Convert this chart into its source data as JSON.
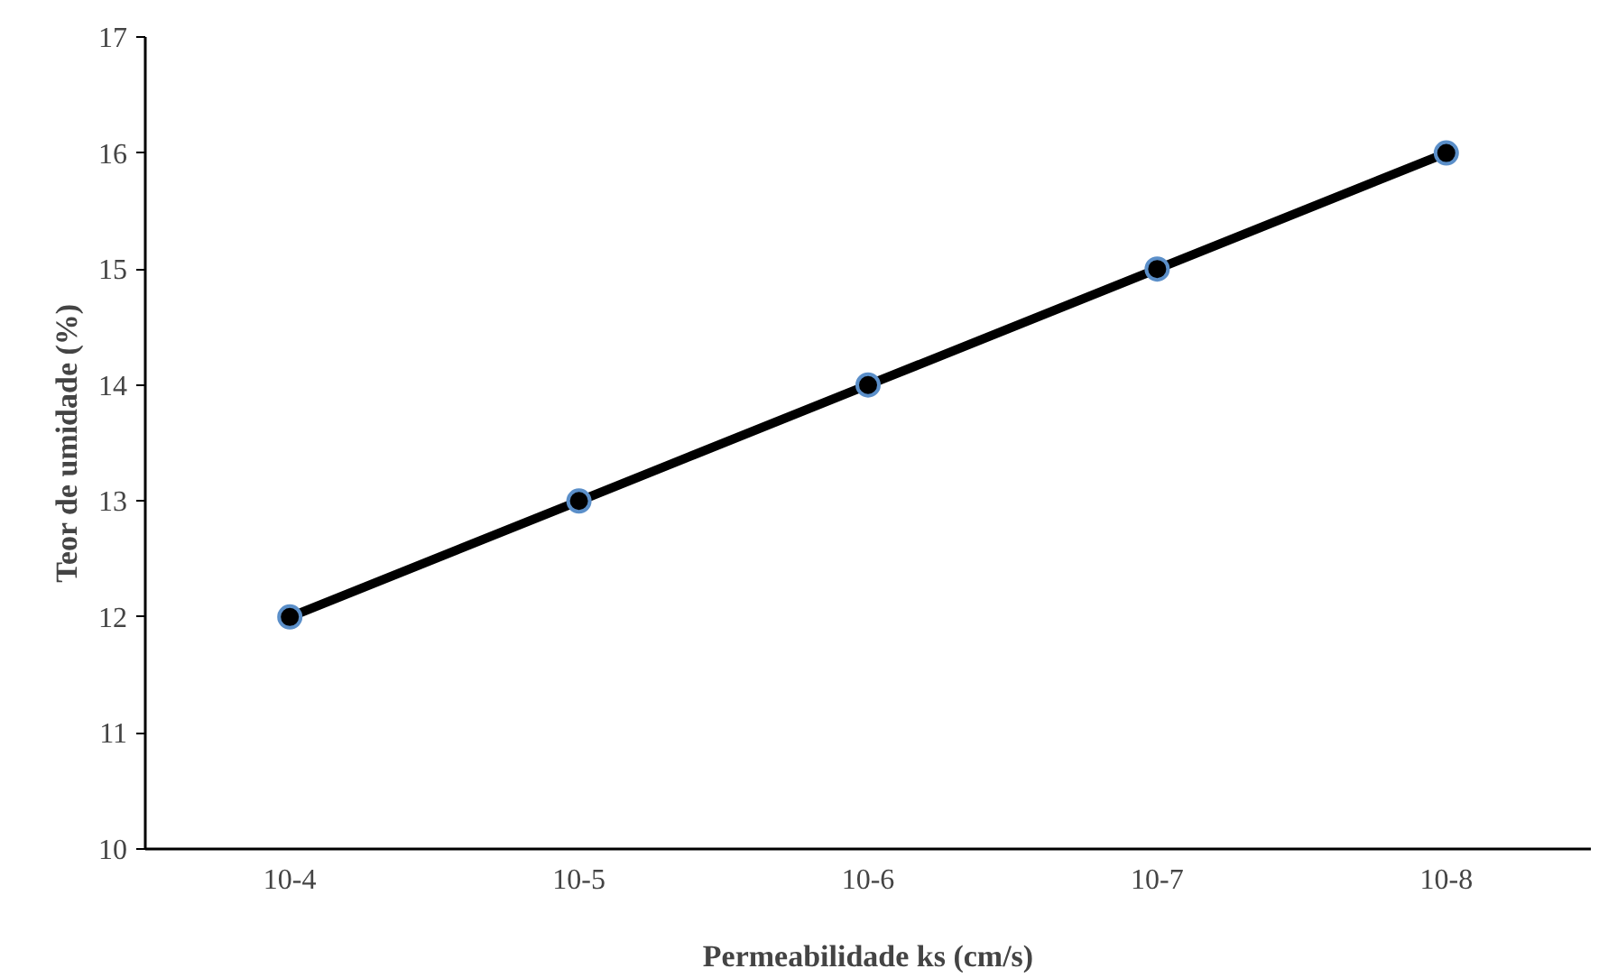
{
  "chart_data": {
    "type": "line",
    "xlabel": "Permeabilidade ks (cm/s)",
    "ylabel": "Teor de umidade (%)",
    "categories": [
      "10-4",
      "10-5",
      "10-6",
      "10-7",
      "10-8"
    ],
    "series": [
      {
        "color": "#000000",
        "values": [
          12,
          13,
          14,
          15,
          16
        ]
      }
    ],
    "ylim": [
      10,
      17
    ],
    "yticks": [
      10,
      11,
      12,
      13,
      14,
      15,
      16,
      17
    ],
    "grid": false,
    "marker": "circle",
    "line_style": "solid"
  }
}
